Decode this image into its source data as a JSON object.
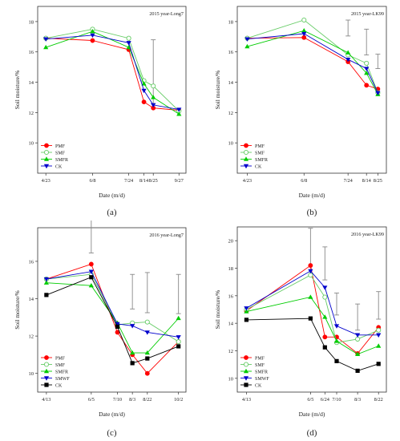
{
  "chart_data": [
    {
      "panel": "(a)",
      "type": "line",
      "title": "2015 year-Long7",
      "xlabel": "Date (m/d)",
      "ylabel": "Soil moisture/%",
      "ylim": [
        8,
        19
      ],
      "yticks": [
        10,
        12,
        14,
        16,
        18
      ],
      "x": [
        0,
        2,
        3.55,
        4.2,
        4.6,
        5.7
      ],
      "categories": [
        "4/23",
        "6/8",
        "7/24",
        "8/14",
        "8/25",
        "9/27"
      ],
      "series": [
        {
          "name": "PMF",
          "color": "#ff0000",
          "marker": "circle",
          "values": [
            16.9,
            16.75,
            16.15,
            12.7,
            12.3,
            12.15
          ]
        },
        {
          "name": "SMF",
          "color": "#66cc66",
          "marker": "circle-open",
          "values": [
            16.9,
            17.5,
            16.9,
            14.1,
            13.75,
            12.1
          ]
        },
        {
          "name": "SMFR",
          "color": "#00cc00",
          "marker": "triangle-up",
          "values": [
            16.3,
            17.35,
            16.3,
            13.9,
            13.0,
            11.9
          ]
        },
        {
          "name": "CK",
          "color": "#0000cc",
          "marker": "triangle-down",
          "values": [
            16.85,
            17.1,
            16.6,
            13.45,
            12.5,
            12.2
          ]
        }
      ],
      "error_bars": [
        {
          "x": 4.6,
          "low": 12.6,
          "high": 16.8
        }
      ],
      "legend": "bottom-left"
    },
    {
      "panel": "(b)",
      "type": "line",
      "title": "2015 year-LK99",
      "xlabel": "Date (m/d)",
      "ylabel": "Soil moisture/%",
      "ylim": [
        8,
        19
      ],
      "yticks": [
        10,
        12,
        14,
        16,
        18
      ],
      "x": [
        0,
        2,
        3.55,
        4.2,
        4.6
      ],
      "categories": [
        "4/23",
        "6/8",
        "7/24",
        "8/14",
        "8/25"
      ],
      "series": [
        {
          "name": "PMF",
          "color": "#ff0000",
          "marker": "circle",
          "values": [
            16.9,
            16.95,
            15.35,
            13.8,
            13.55
          ]
        },
        {
          "name": "SMF",
          "color": "#66cc66",
          "marker": "circle-open",
          "values": [
            16.9,
            18.1,
            15.8,
            15.25,
            13.3
          ]
        },
        {
          "name": "SMFR",
          "color": "#00cc00",
          "marker": "triangle-up",
          "values": [
            16.35,
            17.4,
            15.95,
            14.6,
            13.2
          ]
        },
        {
          "name": "CK",
          "color": "#0000cc",
          "marker": "triangle-down",
          "values": [
            16.85,
            17.2,
            15.5,
            14.9,
            13.3
          ]
        }
      ],
      "error_bars": [
        {
          "x": 3.55,
          "low": 17.05,
          "high": 18.1
        },
        {
          "x": 4.2,
          "low": 15.8,
          "high": 17.5
        },
        {
          "x": 4.6,
          "low": 14.9,
          "high": 15.85
        }
      ],
      "legend": "bottom-left"
    },
    {
      "panel": "(c)",
      "type": "line",
      "title": "2016 year-Long7",
      "xlabel": "Date (m/d)",
      "ylabel": "Soil moisture/%",
      "ylim": [
        9,
        17.8
      ],
      "yticks": [
        10,
        12,
        14,
        16
      ],
      "x": [
        0,
        1.8,
        2.85,
        3.45,
        4.05,
        5.3
      ],
      "categories": [
        "4/13",
        "6/5",
        "7/10",
        "8/3",
        "8/22",
        "10/2"
      ],
      "series": [
        {
          "name": "PMF",
          "color": "#ff0000",
          "marker": "circle",
          "values": [
            15.05,
            15.85,
            12.2,
            11.0,
            10.0,
            11.7
          ]
        },
        {
          "name": "SMF",
          "color": "#66cc66",
          "marker": "circle-open",
          "values": [
            15.05,
            15.3,
            12.6,
            12.7,
            12.75,
            11.7
          ]
        },
        {
          "name": "SMFR",
          "color": "#00cc00",
          "marker": "triangle-up",
          "values": [
            14.85,
            14.7,
            12.7,
            11.1,
            11.1,
            12.95
          ]
        },
        {
          "name": "SMWF",
          "color": "#0000cc",
          "marker": "triangle-down",
          "values": [
            15.05,
            15.45,
            12.65,
            12.55,
            12.2,
            11.95
          ]
        },
        {
          "name": "CK",
          "color": "#000000",
          "marker": "square",
          "values": [
            14.2,
            15.15,
            12.5,
            10.55,
            10.8,
            11.45
          ]
        }
      ],
      "error_bars": [
        {
          "x": 1.8,
          "low": 16.45,
          "high": 18.3
        },
        {
          "x": 3.45,
          "low": 13.45,
          "high": 15.3
        },
        {
          "x": 4.05,
          "low": 13.25,
          "high": 15.4
        },
        {
          "x": 5.3,
          "low": 13.2,
          "high": 15.3
        }
      ],
      "legend": "bottom-left"
    },
    {
      "panel": "(d)",
      "type": "line",
      "title": "2016 year-LK99",
      "xlabel": "Date (m/d)",
      "ylabel": "Soil moisture/%",
      "ylim": [
        9,
        21
      ],
      "yticks": [
        10,
        12,
        14,
        16,
        18,
        20
      ],
      "x": [
        0,
        2.45,
        3.0,
        3.45,
        4.25,
        5.05
      ],
      "categories": [
        "4/13",
        "6/5",
        "6/24",
        "7/10",
        "8/3",
        "8/22"
      ],
      "series": [
        {
          "name": "PMF",
          "color": "#ff0000",
          "marker": "circle",
          "values": [
            14.9,
            18.2,
            13.0,
            13.0,
            11.8,
            13.7
          ]
        },
        {
          "name": "SMF",
          "color": "#66cc66",
          "marker": "circle-open",
          "values": [
            15.0,
            17.5,
            15.9,
            12.6,
            12.85,
            13.5
          ]
        },
        {
          "name": "SMFR",
          "color": "#00cc00",
          "marker": "triangle-up",
          "values": [
            14.85,
            15.9,
            14.45,
            12.7,
            11.75,
            12.35
          ]
        },
        {
          "name": "SMWF",
          "color": "#0000cc",
          "marker": "triangle-down",
          "values": [
            15.1,
            17.8,
            16.6,
            13.8,
            13.15,
            13.15
          ]
        },
        {
          "name": "CK",
          "color": "#000000",
          "marker": "square",
          "values": [
            14.25,
            14.35,
            12.25,
            11.25,
            10.55,
            11.05
          ]
        }
      ],
      "error_bars": [
        {
          "x": 2.45,
          "low": 17.5,
          "high": 20.9
        },
        {
          "x": 3.0,
          "low": 17.15,
          "high": 19.55
        },
        {
          "x": 3.45,
          "low": 14.6,
          "high": 16.2
        },
        {
          "x": 4.25,
          "low": 13.5,
          "high": 15.4
        },
        {
          "x": 5.05,
          "low": 14.3,
          "high": 16.3
        }
      ],
      "legend": "bottom-left"
    }
  ]
}
